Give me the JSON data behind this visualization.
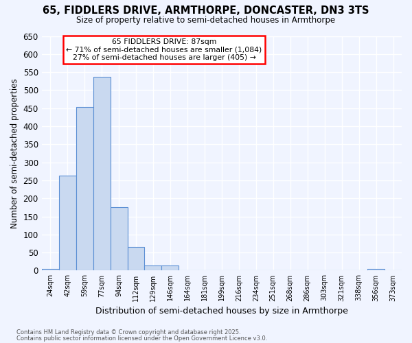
{
  "title_line1": "65, FIDDLERS DRIVE, ARMTHORPE, DONCASTER, DN3 3TS",
  "title_line2": "Size of property relative to semi-detached houses in Armthorpe",
  "xlabel": "Distribution of semi-detached houses by size in Armthorpe",
  "ylabel": "Number of semi-detached properties",
  "bins": [
    "24sqm",
    "42sqm",
    "59sqm",
    "77sqm",
    "94sqm",
    "112sqm",
    "129sqm",
    "146sqm",
    "164sqm",
    "181sqm",
    "199sqm",
    "216sqm",
    "234sqm",
    "251sqm",
    "268sqm",
    "286sqm",
    "303sqm",
    "321sqm",
    "338sqm",
    "356sqm",
    "373sqm"
  ],
  "values": [
    5,
    263,
    454,
    537,
    175,
    65,
    15,
    15,
    0,
    0,
    0,
    0,
    0,
    0,
    0,
    0,
    0,
    0,
    0,
    5,
    0
  ],
  "bar_color": "#c9d9f0",
  "bar_edge_color": "#5b8fd4",
  "annotation_text_line1": "65 FIDDLERS DRIVE: 87sqm",
  "annotation_text_line2": "← 71% of semi-detached houses are smaller (1,084)",
  "annotation_text_line3": "27% of semi-detached houses are larger (405) →",
  "background_color": "#f0f4ff",
  "plot_bg_color": "#e8eefa",
  "grid_color": "#ffffff",
  "footer_line1": "Contains HM Land Registry data © Crown copyright and database right 2025.",
  "footer_line2": "Contains public sector information licensed under the Open Government Licence v3.0.",
  "ylim": [
    0,
    650
  ],
  "yticks": [
    0,
    50,
    100,
    150,
    200,
    250,
    300,
    350,
    400,
    450,
    500,
    550,
    600,
    650
  ]
}
